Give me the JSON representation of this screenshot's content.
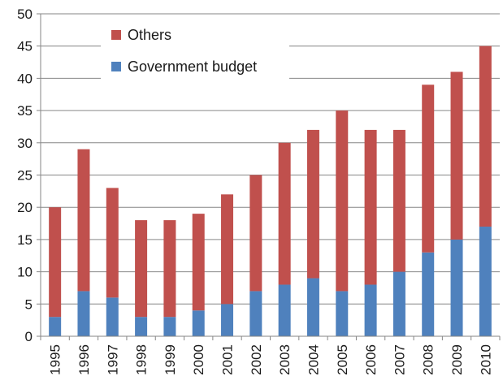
{
  "chart_data": {
    "type": "bar",
    "stacked": true,
    "categories": [
      "1995",
      "1996",
      "1997",
      "1998",
      "1999",
      "2000",
      "2001",
      "2002",
      "2003",
      "2004",
      "2005",
      "2006",
      "2007",
      "2008",
      "2009",
      "2010"
    ],
    "series": [
      {
        "name": "Government budget",
        "color": "#4f81bd",
        "values": [
          3,
          7,
          6,
          3,
          3,
          4,
          5,
          7,
          8,
          9,
          7,
          8,
          10,
          13,
          15,
          17
        ]
      },
      {
        "name": "Others",
        "color": "#c0504d",
        "values": [
          17,
          22,
          17,
          15,
          15,
          15,
          17,
          18,
          22,
          23,
          28,
          24,
          22,
          26,
          26,
          28
        ]
      }
    ],
    "totals": [
      20,
      29,
      23,
      18,
      18,
      19,
      22,
      25,
      30,
      32,
      35,
      32,
      32,
      39,
      41,
      45
    ],
    "ylim": [
      0,
      50
    ],
    "yticks": [
      0,
      5,
      10,
      15,
      20,
      25,
      30,
      35,
      40,
      45,
      50
    ],
    "grid": true,
    "legend_position": "top-left",
    "title": "",
    "xlabel": "",
    "ylabel": ""
  }
}
